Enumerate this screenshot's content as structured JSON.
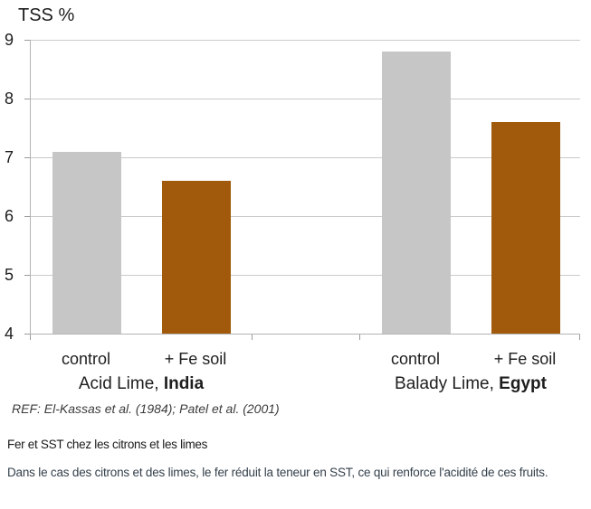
{
  "chart_data": {
    "type": "bar",
    "title": "TSS %",
    "ylim": [
      4,
      9
    ],
    "yticks": [
      9,
      8,
      7,
      6,
      5,
      4
    ],
    "grid": true,
    "legend": "none",
    "series": [
      {
        "name": "control",
        "color": "#c6c6c6"
      },
      {
        "name": "+ Fe soil",
        "color": "#a15a0b"
      }
    ],
    "groups": [
      {
        "label": "Acid Lime,",
        "label_bold": "India",
        "bars": [
          {
            "category": "control",
            "value": 7.1
          },
          {
            "category": "+ Fe soil",
            "value": 6.6
          }
        ]
      },
      {
        "label": "Balady Lime,",
        "label_bold": "Egypt",
        "bars": [
          {
            "category": "control",
            "value": 8.8
          },
          {
            "category": "+ Fe soil",
            "value": 7.6
          }
        ]
      }
    ],
    "reference": "REF: El-Kassas et al. (1984); Patel et al. (2001)"
  },
  "caption": {
    "title": "Fer et SST chez les citrons et les limes",
    "body": "Dans le cas des citrons et des limes, le fer réduit la teneur en SST, ce qui renforce l'acidité de ces fruits."
  }
}
